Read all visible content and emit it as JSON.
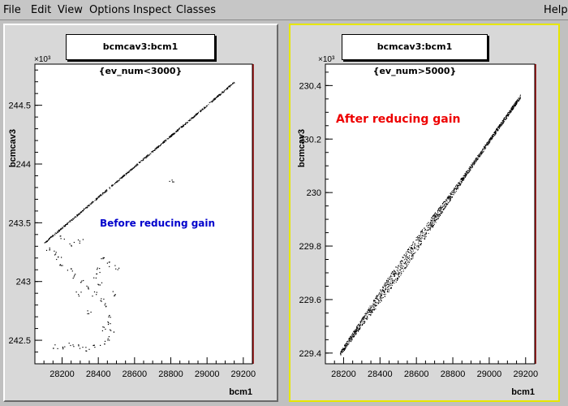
{
  "menu": {
    "file": "File",
    "edit": "Edit",
    "view": "View",
    "options": "Options",
    "inspect": "Inspect",
    "classes": "Classes",
    "help": "Help"
  },
  "chart_data": [
    {
      "type": "scatter",
      "title": "bcmcav3:bcm1 {ev_num<3000}",
      "xlabel": "bcm1",
      "ylabel": "bcmcav3",
      "y_exponent_label": "×10³",
      "xlim": [
        28050,
        29250
      ],
      "ylim": [
        242.3,
        244.85
      ],
      "xticks": [
        28200,
        28400,
        28600,
        28800,
        29000,
        29200
      ],
      "yticks": [
        242.5,
        243,
        243.5,
        244,
        244.5
      ],
      "annotation": "Before  reducing  gain",
      "annotation_color": "#0000cc",
      "band": {
        "x0": 28100,
        "y0": 243.33,
        "x1": 29150,
        "y1": 244.7,
        "width": 0.015
      },
      "cluster": [
        [
          28120,
          243.28
        ],
        [
          28150,
          243.25
        ],
        [
          28180,
          243.2
        ],
        [
          28200,
          243.15
        ],
        [
          28240,
          243.1
        ],
        [
          28260,
          243.05
        ],
        [
          28300,
          243.0
        ],
        [
          28340,
          242.95
        ],
        [
          28380,
          242.9
        ],
        [
          28420,
          242.85
        ],
        [
          28440,
          242.8
        ],
        [
          28450,
          242.72
        ],
        [
          28460,
          242.65
        ],
        [
          28470,
          242.58
        ],
        [
          28460,
          242.52
        ],
        [
          28420,
          242.48
        ],
        [
          28380,
          242.45
        ],
        [
          28340,
          242.43
        ],
        [
          28300,
          242.45
        ],
        [
          28250,
          242.47
        ],
        [
          28200,
          242.45
        ],
        [
          28160,
          242.45
        ],
        [
          28400,
          243.1
        ],
        [
          28450,
          243.15
        ],
        [
          28500,
          243.12
        ],
        [
          28420,
          243.2
        ],
        [
          28380,
          243.05
        ],
        [
          28300,
          243.35
        ],
        [
          28250,
          243.32
        ],
        [
          28200,
          243.38
        ],
        [
          28480,
          242.9
        ],
        [
          28430,
          242.6
        ],
        [
          28350,
          242.75
        ],
        [
          28290,
          242.9
        ],
        [
          28410,
          242.98
        ],
        [
          28800,
          243.85
        ]
      ]
    },
    {
      "type": "scatter",
      "title": "bcmcav3:bcm1 {ev_num>5000}",
      "xlabel": "bcm1",
      "ylabel": "bcmcav3",
      "y_exponent_label": "×10³",
      "xlim": [
        28100,
        29250
      ],
      "ylim": [
        229.36,
        230.48
      ],
      "xticks": [
        28200,
        28400,
        28600,
        28800,
        29000,
        29200
      ],
      "yticks": [
        229.4,
        229.6,
        229.8,
        230,
        230.2,
        230.4
      ],
      "annotation": "After   reducing  gain",
      "annotation_color": "#ee0000",
      "band": {
        "x0": 28180,
        "y0": 229.4,
        "x1": 29170,
        "y1": 230.36,
        "width": 0.03
      }
    }
  ]
}
